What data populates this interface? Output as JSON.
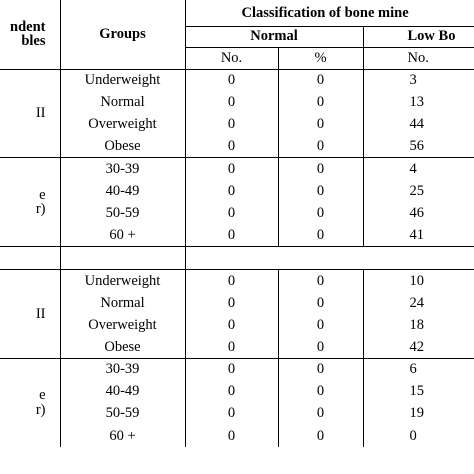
{
  "header": {
    "dependent_variables": [
      "ndent",
      "bles"
    ],
    "groups": "Groups",
    "classification": "Classification of bone mine",
    "normal": "Normal",
    "low_bone": "Low Bo",
    "no": "No.",
    "percent": "%"
  },
  "sections": [
    {
      "label_lines": [
        "II",
        ""
      ],
      "rows": [
        {
          "group": "Underweight",
          "normal_no": "0",
          "normal_pct": "0",
          "low_no": "3"
        },
        {
          "group": "Normal",
          "normal_no": "0",
          "normal_pct": "0",
          "low_no": "13"
        },
        {
          "group": "Overweight",
          "normal_no": "0",
          "normal_pct": "0",
          "low_no": "44"
        },
        {
          "group": "Obese",
          "normal_no": "0",
          "normal_pct": "0",
          "low_no": "56"
        }
      ]
    },
    {
      "label_lines": [
        "e",
        "r)"
      ],
      "rows": [
        {
          "group": "30-39",
          "normal_no": "0",
          "normal_pct": "0",
          "low_no": "4"
        },
        {
          "group": "40-49",
          "normal_no": "0",
          "normal_pct": "0",
          "low_no": "25"
        },
        {
          "group": "50-59",
          "normal_no": "0",
          "normal_pct": "0",
          "low_no": "46"
        },
        {
          "group": "60 +",
          "normal_no": "0",
          "normal_pct": "0",
          "low_no": "41"
        }
      ]
    },
    {
      "label_lines": [
        "II",
        ""
      ],
      "rows": [
        {
          "group": "Underweight",
          "normal_no": "0",
          "normal_pct": "0",
          "low_no": "10"
        },
        {
          "group": "Normal",
          "normal_no": "0",
          "normal_pct": "0",
          "low_no": "24"
        },
        {
          "group": "Overweight",
          "normal_no": "0",
          "normal_pct": "0",
          "low_no": "18"
        },
        {
          "group": "Obese",
          "normal_no": "0",
          "normal_pct": "0",
          "low_no": "42"
        }
      ]
    },
    {
      "label_lines": [
        "e",
        "r)"
      ],
      "rows": [
        {
          "group": "30-39",
          "normal_no": "0",
          "normal_pct": "0",
          "low_no": "6"
        },
        {
          "group": "40-49",
          "normal_no": "0",
          "normal_pct": "0",
          "low_no": "15"
        },
        {
          "group": "50-59",
          "normal_no": "0",
          "normal_pct": "0",
          "low_no": "19"
        },
        {
          "group": "60 +",
          "normal_no": "0",
          "normal_pct": "0",
          "low_no": "0"
        }
      ]
    }
  ]
}
